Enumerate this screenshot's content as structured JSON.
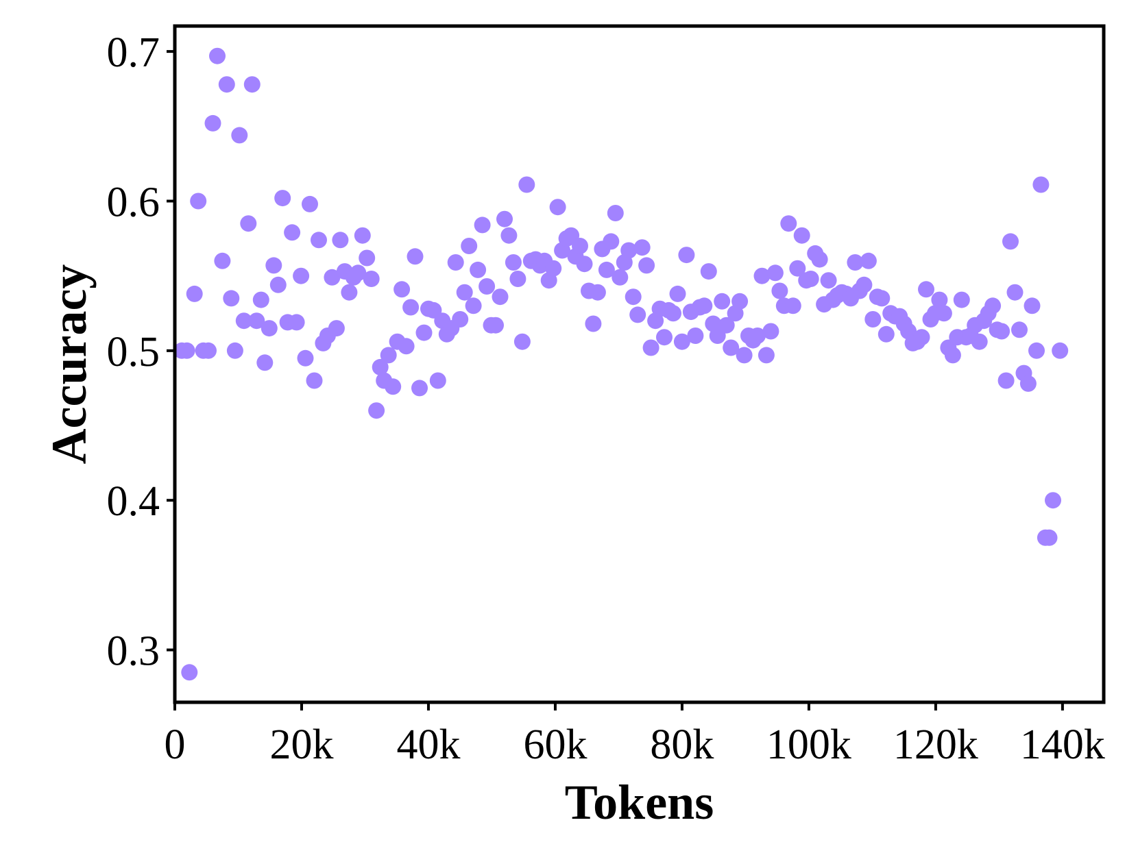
{
  "chart_data": {
    "type": "scatter",
    "xlabel": "Tokens",
    "ylabel": "Accuracy",
    "xlim": [
      0,
      146500
    ],
    "ylim": [
      0.265,
      0.717
    ],
    "grid": false,
    "marker_color": "#a283ff",
    "x_ticks": [
      {
        "value": 0,
        "label": "0"
      },
      {
        "value": 20000,
        "label": "20k"
      },
      {
        "value": 40000,
        "label": "40k"
      },
      {
        "value": 60000,
        "label": "60k"
      },
      {
        "value": 80000,
        "label": "80k"
      },
      {
        "value": 100000,
        "label": "100k"
      },
      {
        "value": 120000,
        "label": "120k"
      },
      {
        "value": 140000,
        "label": "140k"
      }
    ],
    "y_ticks": [
      {
        "value": 0.3,
        "label": "0.3"
      },
      {
        "value": 0.4,
        "label": "0.4"
      },
      {
        "value": 0.5,
        "label": "0.5"
      },
      {
        "value": 0.6,
        "label": "0.6"
      },
      {
        "value": 0.7,
        "label": "0.7"
      }
    ],
    "points": [
      [
        1100,
        0.5
      ],
      [
        1900,
        0.5
      ],
      [
        2300,
        0.285
      ],
      [
        3100,
        0.538
      ],
      [
        3700,
        0.6
      ],
      [
        4500,
        0.5
      ],
      [
        5300,
        0.5
      ],
      [
        6000,
        0.652
      ],
      [
        6700,
        0.697
      ],
      [
        7500,
        0.56
      ],
      [
        8200,
        0.678
      ],
      [
        8900,
        0.535
      ],
      [
        9500,
        0.5
      ],
      [
        10200,
        0.644
      ],
      [
        10900,
        0.52
      ],
      [
        11600,
        0.585
      ],
      [
        12200,
        0.678
      ],
      [
        12900,
        0.52
      ],
      [
        13600,
        0.534
      ],
      [
        14200,
        0.492
      ],
      [
        14900,
        0.515
      ],
      [
        15600,
        0.557
      ],
      [
        16300,
        0.544
      ],
      [
        17000,
        0.602
      ],
      [
        17800,
        0.519
      ],
      [
        18500,
        0.579
      ],
      [
        19200,
        0.519
      ],
      [
        19900,
        0.55
      ],
      [
        20600,
        0.495
      ],
      [
        21300,
        0.598
      ],
      [
        22000,
        0.48
      ],
      [
        22700,
        0.574
      ],
      [
        23400,
        0.505
      ],
      [
        24100,
        0.51
      ],
      [
        24800,
        0.549
      ],
      [
        25500,
        0.515
      ],
      [
        26100,
        0.574
      ],
      [
        26800,
        0.553
      ],
      [
        27500,
        0.539
      ],
      [
        28200,
        0.549
      ],
      [
        28900,
        0.552
      ],
      [
        29600,
        0.577
      ],
      [
        30300,
        0.562
      ],
      [
        31000,
        0.548
      ],
      [
        31800,
        0.46
      ],
      [
        32400,
        0.489
      ],
      [
        33000,
        0.48
      ],
      [
        33700,
        0.497
      ],
      [
        34400,
        0.476
      ],
      [
        35100,
        0.506
      ],
      [
        35800,
        0.541
      ],
      [
        36500,
        0.503
      ],
      [
        37200,
        0.529
      ],
      [
        37900,
        0.563
      ],
      [
        38600,
        0.475
      ],
      [
        39300,
        0.512
      ],
      [
        40000,
        0.528
      ],
      [
        40800,
        0.527
      ],
      [
        41500,
        0.48
      ],
      [
        42200,
        0.52
      ],
      [
        42900,
        0.511
      ],
      [
        43600,
        0.515
      ],
      [
        44300,
        0.559
      ],
      [
        45000,
        0.521
      ],
      [
        45700,
        0.539
      ],
      [
        46400,
        0.57
      ],
      [
        47100,
        0.53
      ],
      [
        47800,
        0.554
      ],
      [
        48500,
        0.584
      ],
      [
        49200,
        0.543
      ],
      [
        49900,
        0.517
      ],
      [
        50600,
        0.517
      ],
      [
        51300,
        0.536
      ],
      [
        52000,
        0.588
      ],
      [
        52700,
        0.577
      ],
      [
        53400,
        0.559
      ],
      [
        54100,
        0.548
      ],
      [
        54800,
        0.506
      ],
      [
        55500,
        0.611
      ],
      [
        56200,
        0.56
      ],
      [
        56900,
        0.561
      ],
      [
        57600,
        0.557
      ],
      [
        58300,
        0.56
      ],
      [
        59000,
        0.547
      ],
      [
        59700,
        0.555
      ],
      [
        60400,
        0.596
      ],
      [
        61100,
        0.567
      ],
      [
        61800,
        0.575
      ],
      [
        62500,
        0.577
      ],
      [
        63200,
        0.563
      ],
      [
        63900,
        0.57
      ],
      [
        64600,
        0.558
      ],
      [
        65300,
        0.54
      ],
      [
        66000,
        0.518
      ],
      [
        66700,
        0.539
      ],
      [
        67400,
        0.568
      ],
      [
        68100,
        0.554
      ],
      [
        68800,
        0.573
      ],
      [
        69500,
        0.592
      ],
      [
        70200,
        0.549
      ],
      [
        70900,
        0.559
      ],
      [
        71600,
        0.567
      ],
      [
        72300,
        0.536
      ],
      [
        73000,
        0.524
      ],
      [
        73700,
        0.569
      ],
      [
        74400,
        0.557
      ],
      [
        75100,
        0.502
      ],
      [
        75800,
        0.52
      ],
      [
        76500,
        0.528
      ],
      [
        77200,
        0.509
      ],
      [
        77900,
        0.527
      ],
      [
        78600,
        0.525
      ],
      [
        79300,
        0.538
      ],
      [
        80000,
        0.506
      ],
      [
        80700,
        0.564
      ],
      [
        81400,
        0.526
      ],
      [
        82100,
        0.51
      ],
      [
        82800,
        0.529
      ],
      [
        83500,
        0.53
      ],
      [
        84200,
        0.553
      ],
      [
        84900,
        0.518
      ],
      [
        85600,
        0.51
      ],
      [
        86300,
        0.533
      ],
      [
        87000,
        0.517
      ],
      [
        87700,
        0.502
      ],
      [
        88400,
        0.525
      ],
      [
        89100,
        0.533
      ],
      [
        89800,
        0.497
      ],
      [
        90500,
        0.51
      ],
      [
        91200,
        0.507
      ],
      [
        91900,
        0.51
      ],
      [
        92600,
        0.55
      ],
      [
        93300,
        0.497
      ],
      [
        94000,
        0.513
      ],
      [
        94700,
        0.552
      ],
      [
        95400,
        0.54
      ],
      [
        96100,
        0.53
      ],
      [
        96800,
        0.585
      ],
      [
        97500,
        0.53
      ],
      [
        98200,
        0.555
      ],
      [
        98900,
        0.577
      ],
      [
        99600,
        0.547
      ],
      [
        100300,
        0.548
      ],
      [
        101000,
        0.565
      ],
      [
        101700,
        0.561
      ],
      [
        102400,
        0.531
      ],
      [
        103100,
        0.547
      ],
      [
        103800,
        0.534
      ],
      [
        104500,
        0.537
      ],
      [
        105200,
        0.539
      ],
      [
        105900,
        0.538
      ],
      [
        106600,
        0.535
      ],
      [
        107300,
        0.559
      ],
      [
        108000,
        0.54
      ],
      [
        108700,
        0.544
      ],
      [
        109400,
        0.56
      ],
      [
        110100,
        0.521
      ],
      [
        110800,
        0.536
      ],
      [
        111500,
        0.535
      ],
      [
        112200,
        0.511
      ],
      [
        112900,
        0.525
      ],
      [
        113600,
        0.523
      ],
      [
        114300,
        0.523
      ],
      [
        115000,
        0.518
      ],
      [
        115700,
        0.513
      ],
      [
        116400,
        0.505
      ],
      [
        117100,
        0.506
      ],
      [
        117800,
        0.509
      ],
      [
        118500,
        0.541
      ],
      [
        119200,
        0.521
      ],
      [
        119900,
        0.525
      ],
      [
        120600,
        0.534
      ],
      [
        121300,
        0.525
      ],
      [
        122000,
        0.502
      ],
      [
        122700,
        0.497
      ],
      [
        123400,
        0.509
      ],
      [
        124100,
        0.534
      ],
      [
        124800,
        0.509
      ],
      [
        125500,
        0.51
      ],
      [
        126200,
        0.517
      ],
      [
        126900,
        0.506
      ],
      [
        127600,
        0.52
      ],
      [
        128300,
        0.525
      ],
      [
        129000,
        0.53
      ],
      [
        129700,
        0.514
      ],
      [
        130400,
        0.513
      ],
      [
        131100,
        0.48
      ],
      [
        131800,
        0.573
      ],
      [
        132500,
        0.539
      ],
      [
        133200,
        0.514
      ],
      [
        133900,
        0.485
      ],
      [
        134600,
        0.478
      ],
      [
        135200,
        0.53
      ],
      [
        135900,
        0.5
      ],
      [
        136600,
        0.611
      ],
      [
        137300,
        0.375
      ],
      [
        137900,
        0.375
      ],
      [
        138500,
        0.4
      ],
      [
        139600,
        0.5
      ]
    ]
  }
}
